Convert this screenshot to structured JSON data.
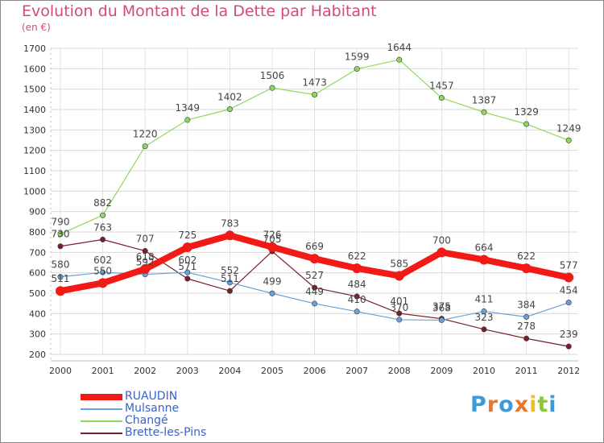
{
  "header": {
    "title": "Evolution du Montant de la Dette par Habitant",
    "unit": "(en €)"
  },
  "logo": {
    "text": "Proxiti",
    "letter_colors": [
      "#3d9ad8",
      "#e8762b",
      "#3d9ad8",
      "#e8762b",
      "#f0c020",
      "#8cc63f",
      "#3d9ad8"
    ]
  },
  "chart_data": {
    "type": "line",
    "x": [
      "2000",
      "2001",
      "2002",
      "2003",
      "2004",
      "2005",
      "2006",
      "2007",
      "2008",
      "2009",
      "2010",
      "2011",
      "2012"
    ],
    "yticks": [
      "200",
      "300",
      "400",
      "500",
      "600",
      "700",
      "800",
      "900",
      "1000",
      "1100",
      "1200",
      "1300",
      "1400",
      "1500",
      "1600",
      "1700"
    ],
    "ylim": [
      200,
      1700
    ],
    "grid": true,
    "legend": "bottom-left",
    "series": [
      {
        "name": "Brette-les-Pins",
        "color": "#7a1f2a",
        "width": 1.2,
        "values": [
          730,
          763,
          707,
          571,
          511,
          705,
          527,
          484,
          401,
          375,
          323,
          278,
          239
        ],
        "labels": [
          "730",
          "763",
          "707",
          "571",
          "511",
          "705",
          "527",
          "484",
          "401",
          "375",
          "323",
          "278",
          "239"
        ]
      },
      {
        "name": "Mulsanne",
        "color": "#6aa2d8",
        "width": 1.2,
        "values": [
          580,
          602,
          592,
          602,
          552,
          499,
          449,
          410,
          370,
          368,
          411,
          384,
          454
        ],
        "labels": [
          "580",
          "602",
          "592",
          "602",
          "552",
          "499",
          "449",
          "410",
          "370",
          "368",
          "411",
          "384",
          "454"
        ]
      },
      {
        "name": "Changé",
        "color": "#8fd85a",
        "width": 1.2,
        "values": [
          790,
          882,
          1220,
          1349,
          1402,
          1506,
          1473,
          1599,
          1644,
          1457,
          1387,
          1329,
          1249
        ],
        "labels": [
          "790",
          "882",
          "1220",
          "1349",
          "1402",
          "1506",
          "1473",
          "1599",
          "1644",
          "1457",
          "1387",
          "1329",
          "1249"
        ]
      },
      {
        "name": "RUAUDIN",
        "color": "#f21a16",
        "width": 8,
        "values": [
          511,
          550,
          618,
          725,
          783,
          726,
          669,
          622,
          585,
          700,
          664,
          622,
          577
        ],
        "labels": [
          "511",
          "550",
          "618",
          "725",
          "783",
          "726",
          "669",
          "622",
          "585",
          "700",
          "664",
          "622",
          "577"
        ]
      }
    ],
    "legend_order": [
      "RUAUDIN",
      "Mulsanne",
      "Changé",
      "Brette-les-Pins"
    ]
  }
}
